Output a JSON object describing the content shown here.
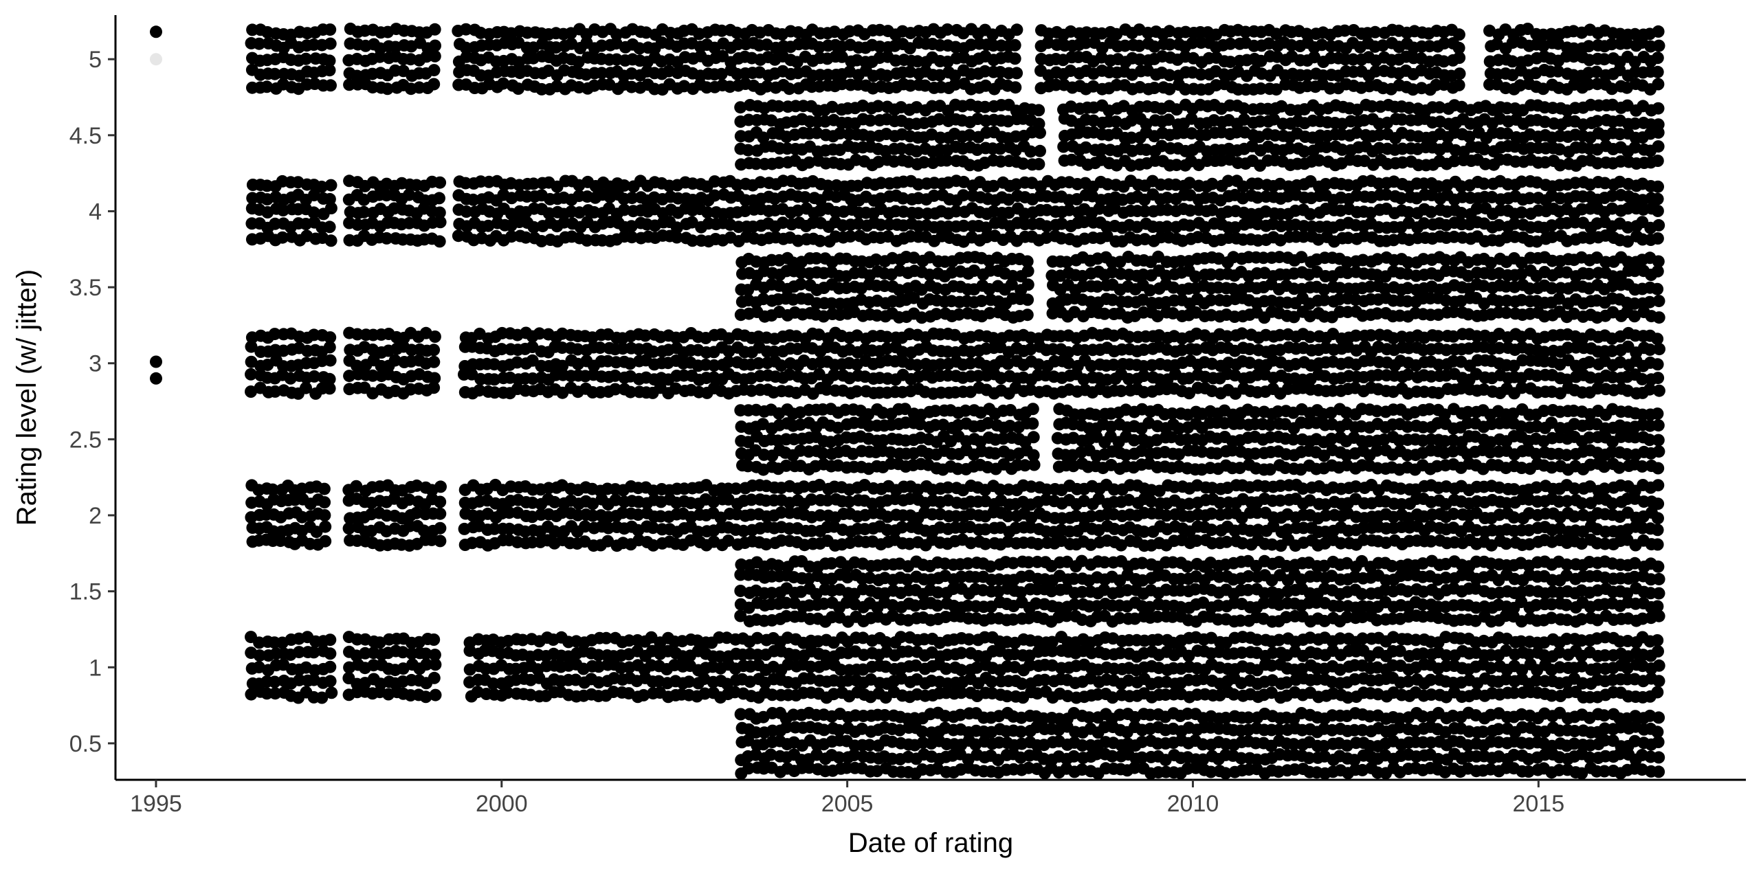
{
  "chart_data": {
    "type": "scatter",
    "title": "",
    "xlabel": "Date of rating",
    "ylabel": "Rating level (w/ jitter)",
    "x_axis": {
      "type": "date",
      "ticks": [
        "1995",
        "2000",
        "2005",
        "2010",
        "2015"
      ],
      "range": [
        "1994-06-01",
        "2018-01-01"
      ]
    },
    "y_axis": {
      "ticks": [
        "0.5",
        "1",
        "1.5",
        "2",
        "2.5",
        "3",
        "3.5",
        "4",
        "4.5",
        "5"
      ],
      "range": [
        0.26,
        5.29
      ]
    },
    "grid": false,
    "legend": "none",
    "jitter": 0.18,
    "colors": {
      "point": "#000000",
      "faint_point": "#e6e6e6",
      "axis": "#000000",
      "tick_label": "#444444"
    },
    "series": [
      {
        "level": 5,
        "bands": [
          {
            "start": "1996-05-01",
            "end": "1997-08-01"
          },
          {
            "start": "1997-10-01",
            "end": "1999-02-01"
          },
          {
            "start": "1999-05-01",
            "end": "2007-07-01"
          },
          {
            "start": "2007-10-01",
            "end": "2013-12-01"
          },
          {
            "start": "2014-04-01",
            "end": "2016-10-15"
          }
        ],
        "points": [
          {
            "x": "1995-01-01",
            "y": 5.18
          }
        ]
      },
      {
        "level": 4.5,
        "bands": [
          {
            "start": "2003-06-01",
            "end": "2007-11-01"
          },
          {
            "start": "2008-02-01",
            "end": "2016-10-15"
          }
        ],
        "points": []
      },
      {
        "level": 4,
        "bands": [
          {
            "start": "1996-05-01",
            "end": "1997-08-01"
          },
          {
            "start": "1997-10-01",
            "end": "1999-03-01"
          },
          {
            "start": "1999-05-01",
            "end": "2016-10-15"
          }
        ],
        "points": []
      },
      {
        "level": 3.5,
        "bands": [
          {
            "start": "2003-06-01",
            "end": "2007-09-01"
          },
          {
            "start": "2007-12-01",
            "end": "2016-10-15"
          }
        ],
        "points": []
      },
      {
        "level": 3,
        "bands": [
          {
            "start": "1996-05-01",
            "end": "1997-08-01"
          },
          {
            "start": "1997-10-01",
            "end": "1999-02-01"
          },
          {
            "start": "1999-06-01",
            "end": "2016-10-15"
          }
        ],
        "points": [
          {
            "x": "1995-01-01",
            "y": 3.01
          },
          {
            "x": "1995-01-01",
            "y": 2.9
          }
        ]
      },
      {
        "level": 2.5,
        "bands": [
          {
            "start": "2003-06-01",
            "end": "2007-10-01"
          },
          {
            "start": "2008-01-01",
            "end": "2016-10-15"
          }
        ],
        "points": []
      },
      {
        "level": 2,
        "bands": [
          {
            "start": "1996-05-01",
            "end": "1997-07-01"
          },
          {
            "start": "1997-10-01",
            "end": "1999-03-01"
          },
          {
            "start": "1999-06-01",
            "end": "2016-10-15"
          }
        ],
        "points": []
      },
      {
        "level": 1.5,
        "bands": [
          {
            "start": "2003-06-01",
            "end": "2016-10-15"
          }
        ],
        "points": []
      },
      {
        "level": 1,
        "bands": [
          {
            "start": "1996-05-01",
            "end": "1997-08-01"
          },
          {
            "start": "1997-10-01",
            "end": "1999-02-01"
          },
          {
            "start": "1999-07-01",
            "end": "2016-10-15"
          }
        ],
        "points": []
      },
      {
        "level": 0.5,
        "bands": [
          {
            "start": "2003-06-01",
            "end": "2016-10-15"
          }
        ],
        "points": []
      }
    ]
  }
}
